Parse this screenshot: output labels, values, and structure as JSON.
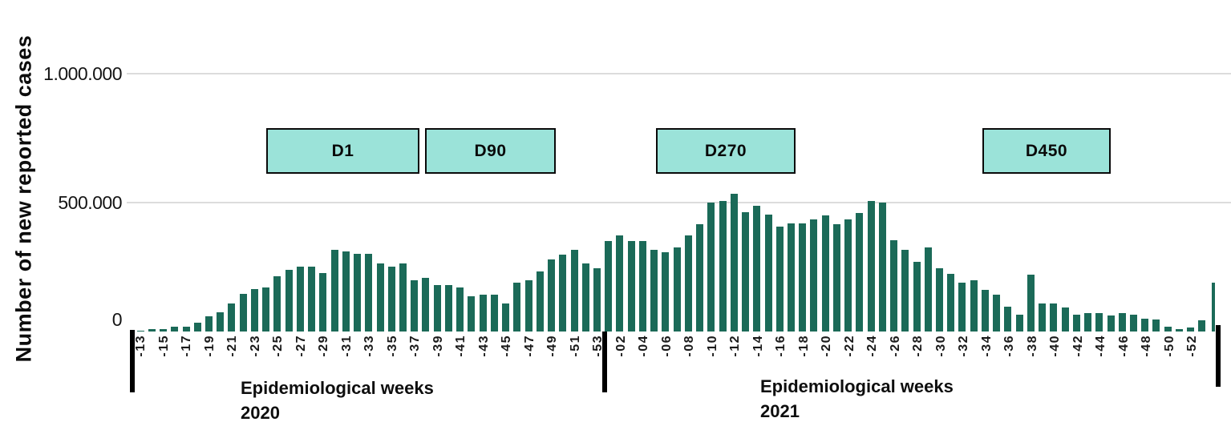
{
  "y_axis": {
    "title": "Number of new reported cases",
    "ticks": [
      "1.000.000",
      "500.000",
      "0"
    ]
  },
  "x_axis_groups": [
    {
      "line1": "Epidemiological weeks",
      "line2": "2020"
    },
    {
      "line1": "Epidemiological weeks",
      "line2": "2021"
    }
  ],
  "chart_data": {
    "type": "bar",
    "title": "",
    "xlabel": "Epidemiological weeks 2020 / 2021",
    "ylabel": "Number of new reported cases",
    "ylim": [
      0,
      1000000
    ],
    "y_gridlines": [
      500000,
      1000000
    ],
    "grid": "horizontal",
    "legend": "none",
    "bar_color": "#1b6a58",
    "annotation_box_fill": "#9be3d9",
    "annotation_boxes": [
      "D1",
      "D90",
      "D270",
      "D450"
    ],
    "groups": [
      {
        "label": "Epidemiological weeks 2020",
        "bars": [
          {
            "t": "-13",
            "v": 2000
          },
          {
            "t": "",
            "v": 10000
          },
          {
            "t": "-15",
            "v": 10000
          },
          {
            "t": "",
            "v": 19000
          },
          {
            "t": "-17",
            "v": 19000
          },
          {
            "t": "",
            "v": 34000
          },
          {
            "t": "-19",
            "v": 59000
          },
          {
            "t": "",
            "v": 75000
          },
          {
            "t": "-21",
            "v": 110000
          },
          {
            "t": "",
            "v": 147000
          },
          {
            "t": "-23",
            "v": 166000
          },
          {
            "t": "",
            "v": 172000
          },
          {
            "t": "-25",
            "v": 213000
          },
          {
            "t": "",
            "v": 238000
          },
          {
            "t": "-27",
            "v": 253000
          },
          {
            "t": "",
            "v": 253000
          },
          {
            "t": "-29",
            "v": 226000
          },
          {
            "t": "",
            "v": 316000
          },
          {
            "t": "-31",
            "v": 310000
          },
          {
            "t": "",
            "v": 300000
          },
          {
            "t": "-33",
            "v": 300000
          },
          {
            "t": "",
            "v": 263000
          },
          {
            "t": "-35",
            "v": 253000
          },
          {
            "t": "",
            "v": 263000
          },
          {
            "t": "-37",
            "v": 200000
          },
          {
            "t": "",
            "v": 209000
          },
          {
            "t": "-39",
            "v": 181000
          },
          {
            "t": "",
            "v": 181000
          },
          {
            "t": "-41",
            "v": 172000
          },
          {
            "t": "",
            "v": 138000
          },
          {
            "t": "-43",
            "v": 144000
          },
          {
            "t": "",
            "v": 144000
          },
          {
            "t": "-45",
            "v": 109000
          },
          {
            "t": "",
            "v": 188000
          },
          {
            "t": "-47",
            "v": 200000
          },
          {
            "t": "",
            "v": 234000
          },
          {
            "t": "-49",
            "v": 281000
          },
          {
            "t": "",
            "v": 297000
          },
          {
            "t": "-51",
            "v": 316000
          },
          {
            "t": "",
            "v": 263000
          },
          {
            "t": "-53",
            "v": 244000
          }
        ]
      },
      {
        "label": "Epidemiological weeks 2021",
        "bars": [
          {
            "t": "",
            "v": 350000
          },
          {
            "t": "-02",
            "v": 372000
          },
          {
            "t": "",
            "v": 350000
          },
          {
            "t": "-04",
            "v": 350000
          },
          {
            "t": "",
            "v": 316000
          },
          {
            "t": "-06",
            "v": 306000
          },
          {
            "t": "",
            "v": 325000
          },
          {
            "t": "-08",
            "v": 372000
          },
          {
            "t": "",
            "v": 416000
          },
          {
            "t": "-10",
            "v": 500000
          },
          {
            "t": "",
            "v": 507000
          },
          {
            "t": "-12",
            "v": 534000
          },
          {
            "t": "",
            "v": 463000
          },
          {
            "t": "-14",
            "v": 488000
          },
          {
            "t": "",
            "v": 453000
          },
          {
            "t": "-16",
            "v": 406000
          },
          {
            "t": "",
            "v": 419000
          },
          {
            "t": "-18",
            "v": 419000
          },
          {
            "t": "",
            "v": 434000
          },
          {
            "t": "-20",
            "v": 450000
          },
          {
            "t": "",
            "v": 416000
          },
          {
            "t": "-22",
            "v": 434000
          },
          {
            "t": "",
            "v": 459000
          },
          {
            "t": "-24",
            "v": 507000
          },
          {
            "t": "",
            "v": 500000
          },
          {
            "t": "-26",
            "v": 353000
          },
          {
            "t": "",
            "v": 316000
          },
          {
            "t": "-28",
            "v": 269000
          },
          {
            "t": "",
            "v": 325000
          },
          {
            "t": "-30",
            "v": 244000
          },
          {
            "t": "",
            "v": 225000
          },
          {
            "t": "-32",
            "v": 188000
          },
          {
            "t": "",
            "v": 200000
          },
          {
            "t": "-34",
            "v": 163000
          },
          {
            "t": "",
            "v": 144000
          },
          {
            "t": "-36",
            "v": 97000
          },
          {
            "t": "",
            "v": 66000
          },
          {
            "t": "-38",
            "v": 220000
          },
          {
            "t": "",
            "v": 109000
          },
          {
            "t": "-40",
            "v": 109000
          },
          {
            "t": "",
            "v": 94000
          },
          {
            "t": "-42",
            "v": 66000
          },
          {
            "t": "",
            "v": 72000
          },
          {
            "t": "-44",
            "v": 72000
          },
          {
            "t": "",
            "v": 63000
          },
          {
            "t": "-46",
            "v": 72000
          },
          {
            "t": "",
            "v": 66000
          },
          {
            "t": "-48",
            "v": 50000
          },
          {
            "t": "",
            "v": 47000
          },
          {
            "t": "-50",
            "v": 19000
          },
          {
            "t": "",
            "v": 9000
          },
          {
            "t": "-52",
            "v": 16000
          },
          {
            "t": "",
            "v": 44000
          },
          {
            "t": "",
            "v": 190000,
            "thin": true
          }
        ]
      }
    ]
  }
}
